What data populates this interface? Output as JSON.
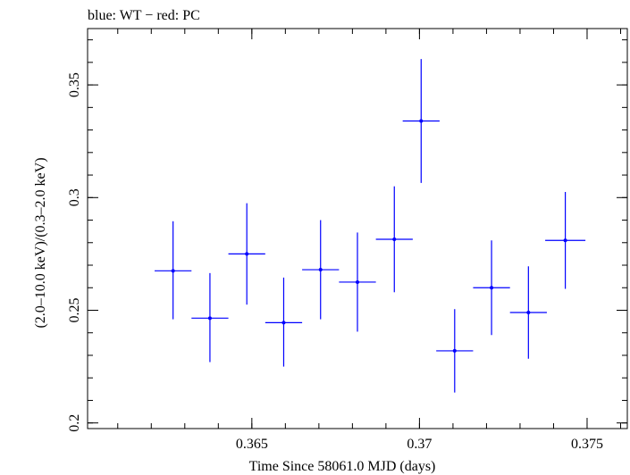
{
  "chart_data": {
    "type": "scatter",
    "title": "blue: WT − red: PC",
    "xlabel": "Time Since 58061.0 MJD (days)",
    "ylabel": "(2.0–10.0 keV)/(0.3–2.0 keV)",
    "xlim": [
      0.3601,
      0.3762
    ],
    "ylim": [
      0.1975,
      0.375
    ],
    "x_ticks": [
      {
        "value": 0.365,
        "label": "0.365"
      },
      {
        "value": 0.37,
        "label": "0.37"
      },
      {
        "value": 0.375,
        "label": "0.375"
      }
    ],
    "y_ticks": [
      {
        "value": 0.2,
        "label": "0.2"
      },
      {
        "value": 0.25,
        "label": "0.25"
      },
      {
        "value": 0.3,
        "label": "0.3"
      },
      {
        "value": 0.35,
        "label": "0.35"
      }
    ],
    "grid": false,
    "series": [
      {
        "color": "#0000ff",
        "points": [
          {
            "x": 0.36265,
            "y": 0.2675,
            "xerr": 0.00055,
            "yerr_low": 0.0215,
            "yerr_high": 0.022
          },
          {
            "x": 0.36375,
            "y": 0.2465,
            "xerr": 0.00055,
            "yerr_low": 0.0195,
            "yerr_high": 0.02
          },
          {
            "x": 0.36485,
            "y": 0.275,
            "xerr": 0.00055,
            "yerr_low": 0.0225,
            "yerr_high": 0.0225
          },
          {
            "x": 0.36595,
            "y": 0.2445,
            "xerr": 0.00055,
            "yerr_low": 0.0195,
            "yerr_high": 0.02
          },
          {
            "x": 0.36705,
            "y": 0.268,
            "xerr": 0.00055,
            "yerr_low": 0.022,
            "yerr_high": 0.022
          },
          {
            "x": 0.36815,
            "y": 0.2625,
            "xerr": 0.00055,
            "yerr_low": 0.022,
            "yerr_high": 0.022
          },
          {
            "x": 0.36925,
            "y": 0.2815,
            "xerr": 0.00055,
            "yerr_low": 0.0235,
            "yerr_high": 0.0235
          },
          {
            "x": 0.37005,
            "y": 0.334,
            "xerr": 0.00055,
            "yerr_low": 0.0275,
            "yerr_high": 0.0275
          },
          {
            "x": 0.37105,
            "y": 0.232,
            "xerr": 0.00055,
            "yerr_low": 0.0185,
            "yerr_high": 0.0185
          },
          {
            "x": 0.37215,
            "y": 0.26,
            "xerr": 0.00055,
            "yerr_low": 0.021,
            "yerr_high": 0.021
          },
          {
            "x": 0.37325,
            "y": 0.249,
            "xerr": 0.00055,
            "yerr_low": 0.0205,
            "yerr_high": 0.0205
          },
          {
            "x": 0.37435,
            "y": 0.281,
            "xerr": 0.0006,
            "yerr_low": 0.0215,
            "yerr_high": 0.0215
          }
        ]
      }
    ]
  }
}
